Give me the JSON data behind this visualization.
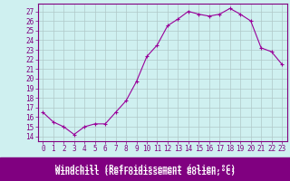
{
  "x": [
    0,
    1,
    2,
    3,
    4,
    5,
    6,
    7,
    8,
    9,
    10,
    11,
    12,
    13,
    14,
    15,
    16,
    17,
    18,
    19,
    20,
    21,
    22,
    23
  ],
  "y": [
    16.5,
    15.5,
    15.0,
    14.2,
    15.0,
    15.3,
    15.3,
    16.5,
    17.7,
    19.7,
    22.3,
    23.5,
    25.5,
    26.2,
    27.0,
    26.7,
    26.5,
    26.7,
    27.3,
    26.7,
    26.0,
    23.2,
    22.8,
    21.5
  ],
  "line_color": "#990099",
  "marker": "+",
  "bg_color": "#cff0f0",
  "grid_color": "#b0c8c8",
  "xlabel": "Windchill (Refroidissement éolien,°C)",
  "ylabel_ticks": [
    14,
    15,
    16,
    17,
    18,
    19,
    20,
    21,
    22,
    23,
    24,
    25,
    26,
    27
  ],
  "ylim": [
    13.5,
    27.8
  ],
  "xlim": [
    -0.5,
    23.5
  ],
  "xtick_labels": [
    "0",
    "1",
    "2",
    "3",
    "4",
    "5",
    "6",
    "7",
    "8",
    "9",
    "10",
    "11",
    "12",
    "13",
    "14",
    "15",
    "16",
    "17",
    "18",
    "19",
    "20",
    "21",
    "22",
    "23"
  ],
  "title_color": "#ffffff",
  "axis_bg": "#800080",
  "tick_fontsize": 5.5,
  "xlabel_fontsize": 6.5
}
